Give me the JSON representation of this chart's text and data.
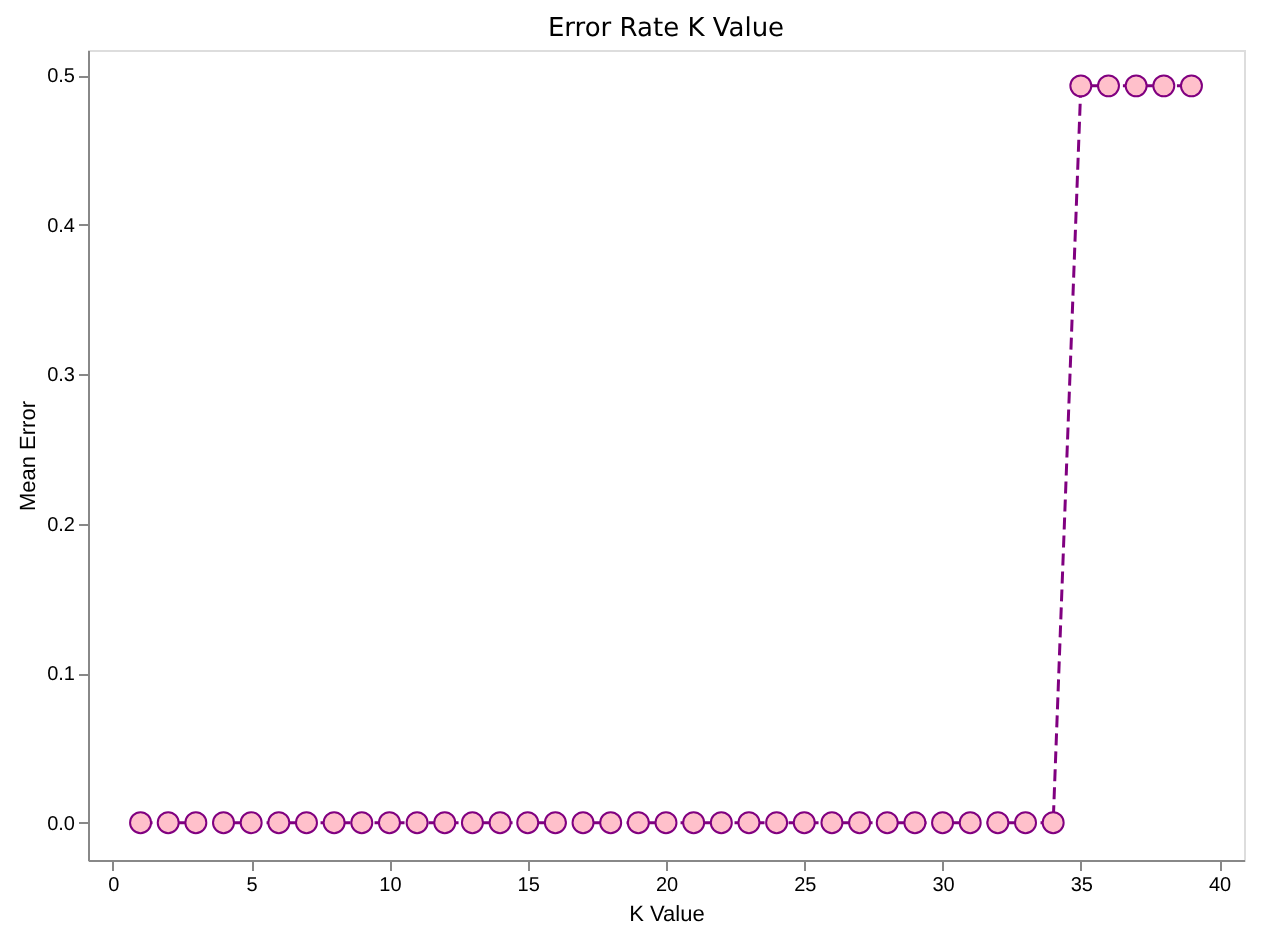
{
  "chart_data": {
    "type": "line",
    "title": "Error Rate K Value",
    "xlabel": "K Value",
    "ylabel": "Mean Error",
    "x": [
      1,
      2,
      3,
      4,
      5,
      6,
      7,
      8,
      9,
      10,
      11,
      12,
      13,
      14,
      15,
      16,
      17,
      18,
      19,
      20,
      21,
      22,
      23,
      24,
      25,
      26,
      27,
      28,
      29,
      30,
      31,
      32,
      33,
      34,
      35,
      36,
      37,
      38,
      39
    ],
    "series": [
      {
        "color": "#800080",
        "values": [
          0,
          0,
          0,
          0,
          0,
          0,
          0,
          0,
          0,
          0,
          0,
          0,
          0,
          0,
          0,
          0,
          0,
          0,
          0,
          0,
          0,
          0,
          0,
          0,
          0,
          0,
          0,
          0,
          0,
          0,
          0,
          0,
          0,
          0,
          0.493,
          0.493,
          0.493,
          0.493,
          0.493
        ]
      }
    ],
    "xlim": [
      -0.9,
      40.9
    ],
    "xticks": [
      0,
      5,
      10,
      15,
      20,
      25,
      30,
      35,
      40
    ],
    "ylim": [
      -0.025,
      0.517
    ],
    "yticks": [
      {
        "value": 0,
        "label": "0.0"
      },
      {
        "value": 0.1,
        "label": "0.1"
      },
      {
        "value": 0.2,
        "label": "0.2"
      },
      {
        "value": 0.3,
        "label": "0.3"
      },
      {
        "value": 0.4,
        "label": "0.4"
      },
      {
        "value": 0.5,
        "label": "0.5"
      }
    ],
    "grid": false,
    "marker": "circle",
    "line_style": "dashed"
  }
}
